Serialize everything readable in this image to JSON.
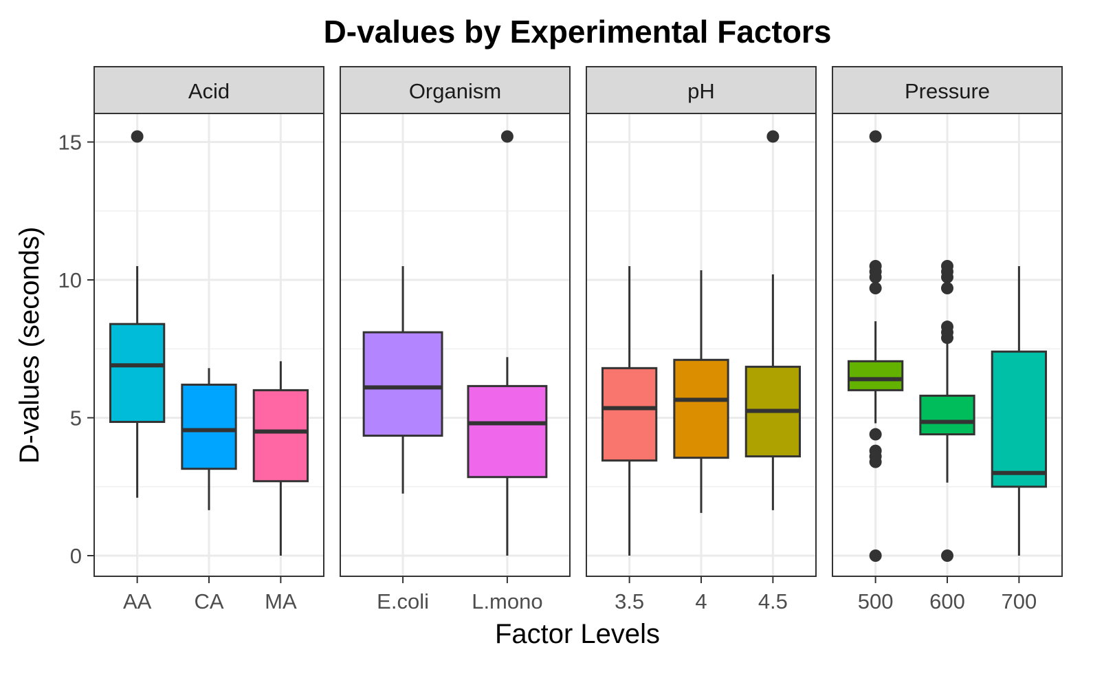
{
  "chart_data": {
    "type": "boxplot",
    "title": "D-values by Experimental Factors",
    "xlabel": "Factor Levels",
    "ylabel": "D-values (seconds)",
    "ylim": [
      -0.7,
      16.0
    ],
    "yticks": [
      0,
      5,
      10,
      15
    ],
    "grid": true,
    "legend": "none",
    "panels": [
      {
        "name": "Acid",
        "groups": [
          {
            "label": "AA",
            "color": "#00BCD8",
            "whisker_low": 2.1,
            "q1": 4.85,
            "median": 6.9,
            "q3": 8.4,
            "whisker_high": 10.5,
            "outliers": [
              15.2
            ]
          },
          {
            "label": "CA",
            "color": "#00A5FF",
            "whisker_low": 1.65,
            "q1": 3.15,
            "median": 4.55,
            "q3": 6.2,
            "whisker_high": 6.8,
            "outliers": []
          },
          {
            "label": "MA",
            "color": "#FF67A4",
            "whisker_low": 0.0,
            "q1": 2.7,
            "median": 4.5,
            "q3": 6.0,
            "whisker_high": 7.05,
            "outliers": []
          }
        ]
      },
      {
        "name": "Organism",
        "groups": [
          {
            "label": "E.coli",
            "color": "#B385FF",
            "whisker_low": 2.25,
            "q1": 4.35,
            "median": 6.1,
            "q3": 8.1,
            "whisker_high": 10.5,
            "outliers": []
          },
          {
            "label": "L.mono",
            "color": "#EF67EB",
            "whisker_low": 0.0,
            "q1": 2.85,
            "median": 4.8,
            "q3": 6.15,
            "whisker_high": 7.2,
            "outliers": [
              15.2
            ]
          }
        ]
      },
      {
        "name": "pH",
        "groups": [
          {
            "label": "3.5",
            "color": "#F8766D",
            "whisker_low": 0.0,
            "q1": 3.45,
            "median": 5.35,
            "q3": 6.8,
            "whisker_high": 10.5,
            "outliers": []
          },
          {
            "label": "4",
            "color": "#DB8E00",
            "whisker_low": 1.55,
            "q1": 3.55,
            "median": 5.65,
            "q3": 7.1,
            "whisker_high": 10.35,
            "outliers": []
          },
          {
            "label": "4.5",
            "color": "#AEA200",
            "whisker_low": 1.65,
            "q1": 3.6,
            "median": 5.25,
            "q3": 6.85,
            "whisker_high": 10.2,
            "outliers": [
              15.2
            ]
          }
        ]
      },
      {
        "name": "Pressure",
        "groups": [
          {
            "label": "500",
            "color": "#64B200",
            "whisker_low": 4.8,
            "q1": 6.0,
            "median": 6.4,
            "q3": 7.05,
            "whisker_high": 8.5,
            "outliers": [
              15.2,
              10.5,
              10.3,
              10.1,
              9.7,
              4.4,
              3.8,
              3.6,
              3.4,
              0.0
            ]
          },
          {
            "label": "600",
            "color": "#00BD5C",
            "whisker_low": 2.65,
            "q1": 4.4,
            "median": 4.85,
            "q3": 5.8,
            "whisker_high": 7.8,
            "outliers": [
              10.5,
              10.3,
              10.1,
              9.7,
              8.3,
              8.1,
              7.9,
              0.0
            ]
          },
          {
            "label": "700",
            "color": "#00C1A7",
            "whisker_low": 0.0,
            "q1": 2.5,
            "median": 3.0,
            "q3": 7.4,
            "whisker_high": 10.5,
            "outliers": []
          }
        ]
      }
    ]
  }
}
